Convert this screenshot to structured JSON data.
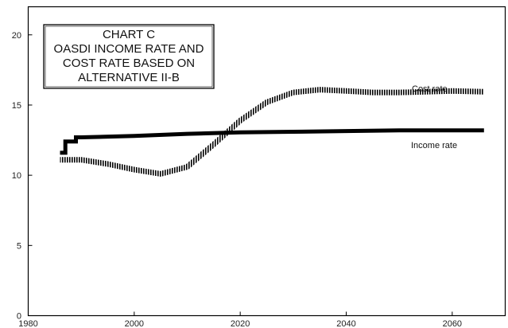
{
  "chart_data": {
    "type": "line",
    "title_lines": [
      "CHART C",
      "OASDI INCOME RATE AND",
      "COST RATE BASED ON",
      "ALTERNATIVE II-B"
    ],
    "xlabel": "",
    "ylabel": "",
    "xlim": [
      1980,
      2070
    ],
    "ylim": [
      0,
      22
    ],
    "x_ticks": [
      1980,
      2000,
      2020,
      2040,
      2060
    ],
    "y_ticks": [
      0,
      5,
      10,
      15,
      20
    ],
    "grid": false,
    "legend": "none",
    "series": [
      {
        "name": "Income rate",
        "style": "solid-thick",
        "color": "#000000",
        "points": [
          [
            1986,
            11.6
          ],
          [
            1987,
            11.6
          ],
          [
            1987,
            12.4
          ],
          [
            1989,
            12.4
          ],
          [
            1989,
            12.7
          ],
          [
            1990,
            12.7
          ],
          [
            2000,
            12.8
          ],
          [
            2010,
            12.95
          ],
          [
            2020,
            13.05
          ],
          [
            2030,
            13.1
          ],
          [
            2040,
            13.15
          ],
          [
            2050,
            13.2
          ],
          [
            2066,
            13.2
          ]
        ]
      },
      {
        "name": "Cost rate",
        "style": "hatched",
        "color": "#000000",
        "points": [
          [
            1986,
            11.1
          ],
          [
            1990,
            11.1
          ],
          [
            1995,
            10.8
          ],
          [
            2000,
            10.4
          ],
          [
            2005,
            10.1
          ],
          [
            2010,
            10.6
          ],
          [
            2015,
            12.2
          ],
          [
            2020,
            13.9
          ],
          [
            2025,
            15.2
          ],
          [
            2030,
            15.9
          ],
          [
            2035,
            16.1
          ],
          [
            2040,
            16.0
          ],
          [
            2045,
            15.9
          ],
          [
            2050,
            15.9
          ],
          [
            2055,
            15.95
          ],
          [
            2060,
            16.0
          ],
          [
            2066,
            15.95
          ]
        ]
      }
    ]
  }
}
